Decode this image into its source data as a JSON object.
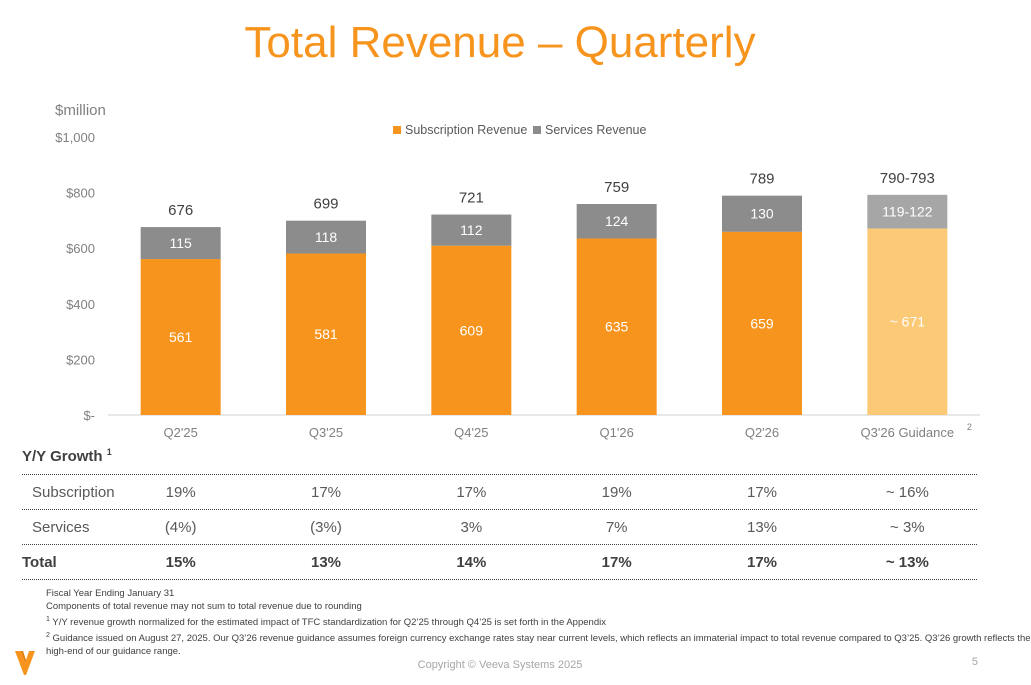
{
  "title": "Total Revenue – Quarterly",
  "chart_data": {
    "type": "bar",
    "stacked": true,
    "ylabel_unit": "$million",
    "ylim": [
      0,
      1000
    ],
    "yticks": [
      0,
      200,
      400,
      600,
      800,
      1000
    ],
    "ytick_labels": [
      "$-",
      "$200",
      "$400",
      "$600",
      "$800",
      "$1,000"
    ],
    "categories": [
      "Q2'25",
      "Q3'25",
      "Q4'25",
      "Q1'26",
      "Q2'26",
      "Q3'26 Guidance"
    ],
    "category_superscripts": [
      "",
      "",
      "",
      "",
      "",
      "2"
    ],
    "legend": {
      "position": "top-center"
    },
    "series": [
      {
        "name": "Subscription Revenue",
        "color": "#f7941d",
        "highlight_color": "#fcc976",
        "values": [
          561,
          581,
          609,
          635,
          659,
          671
        ],
        "labels": [
          "561",
          "581",
          "609",
          "635",
          "659",
          "~ 671"
        ]
      },
      {
        "name": "Services Revenue",
        "color": "#8c8c8c",
        "highlight_color": "#a6a6a6",
        "values": [
          115,
          118,
          112,
          124,
          130,
          121
        ],
        "labels": [
          "115",
          "118",
          "112",
          "124",
          "130",
          "119-122"
        ]
      }
    ],
    "totals": [
      "676",
      "699",
      "721",
      "759",
      "789",
      "790-793"
    ],
    "highlight_index": 5,
    "grid": false
  },
  "growth": {
    "title": "Y/Y Growth",
    "title_sup": "1",
    "rows": [
      {
        "label": "Subscription",
        "values": [
          "19%",
          "17%",
          "17%",
          "19%",
          "17%",
          "~ 16%"
        ]
      },
      {
        "label": "Services",
        "values": [
          "(4%)",
          "(3%)",
          "3%",
          "7%",
          "13%",
          "~ 3%"
        ]
      },
      {
        "label": "Total",
        "values": [
          "15%",
          "13%",
          "14%",
          "17%",
          "17%",
          "~ 13%"
        ]
      }
    ]
  },
  "footnotes": {
    "line1": "Fiscal Year Ending January 31",
    "line2": "Components of total revenue may not sum to total revenue due to rounding",
    "line3_sup": "1",
    "line3": " Y/Y revenue growth normalized for the estimated impact of TFC standardization for Q2’25 through Q4’25 is set forth in the Appendix",
    "line4_sup": "2",
    "line4": " Guidance issued on August 27, 2025. Our Q3’26 revenue guidance assumes foreign currency exchange rates stay near current levels, which reflects an immaterial impact to total revenue compared to Q3’25. Q3’26 growth reflects the",
    "line5": "high-end of our guidance range."
  },
  "copyright": "Copyright © Veeva Systems 2025",
  "page_number": "5",
  "brand_color": "#f7941d"
}
